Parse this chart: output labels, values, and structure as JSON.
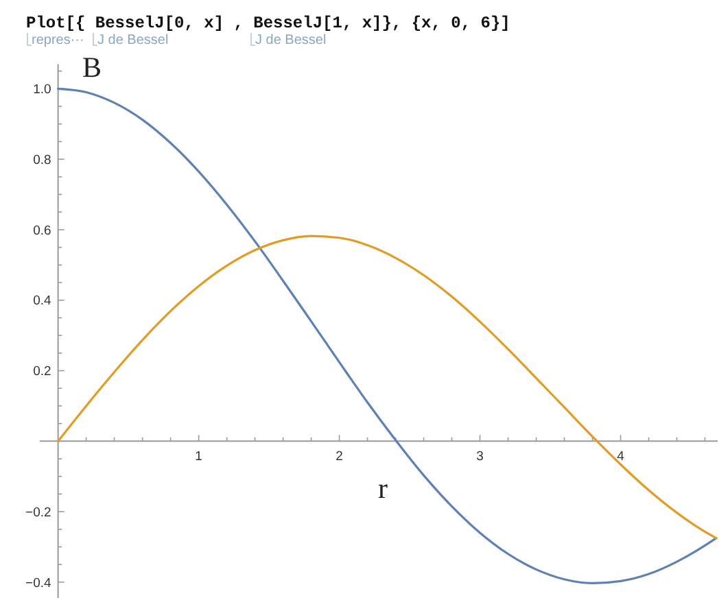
{
  "chart_data": {
    "type": "line",
    "title": "Plot[{ BesselJ[0, x] , BesselJ[1, x]}, {x, 0, 6}]",
    "annotations": [
      "repres···",
      "J de Bessel",
      "J de Bessel"
    ],
    "xlabel": "r",
    "ylabel": "B",
    "x": [
      0,
      0.2,
      0.4,
      0.6,
      0.8,
      1.0,
      1.2,
      1.4,
      1.6,
      1.8,
      2.0,
      2.2,
      2.4,
      2.6,
      2.8,
      3.0,
      3.2,
      3.4,
      3.6,
      3.8,
      4.0,
      4.2,
      4.4,
      4.6,
      4.68
    ],
    "series": [
      {
        "color": "#5e81b5",
        "values": [
          1.0,
          0.99,
          0.96,
          0.912,
          0.846,
          0.765,
          0.671,
          0.567,
          0.455,
          0.34,
          0.224,
          0.11,
          0.003,
          -0.097,
          -0.185,
          -0.26,
          -0.32,
          -0.364,
          -0.392,
          -0.403,
          -0.397,
          -0.377,
          -0.342,
          -0.296,
          -0.275
        ]
      },
      {
        "color": "#e19c24",
        "values": [
          0,
          0.1,
          0.196,
          0.287,
          0.369,
          0.44,
          0.498,
          0.542,
          0.57,
          0.582,
          0.577,
          0.556,
          0.52,
          0.471,
          0.41,
          0.339,
          0.261,
          0.179,
          0.096,
          0.013,
          -0.066,
          -0.139,
          -0.203,
          -0.257,
          -0.275
        ]
      }
    ],
    "xlim": [
      -0.13,
      4.69
    ],
    "ylim": [
      -0.445,
      1.07
    ],
    "xticks": [
      {
        "value": 0.2,
        "label": null
      },
      {
        "value": 0.4,
        "label": null
      },
      {
        "value": 0.6,
        "label": null
      },
      {
        "value": 0.8,
        "label": null
      },
      1,
      {
        "value": 1.2,
        "label": null
      },
      {
        "value": 1.4,
        "label": null
      },
      {
        "value": 1.6,
        "label": null
      },
      {
        "value": 1.8,
        "label": null
      },
      2,
      {
        "value": 2.2,
        "label": null
      },
      {
        "value": 2.4,
        "label": null
      },
      {
        "value": 2.6,
        "label": null
      },
      {
        "value": 2.8,
        "label": null
      },
      3,
      {
        "value": 3.2,
        "label": null
      },
      {
        "value": 3.4,
        "label": null
      },
      {
        "value": 3.6,
        "label": null
      },
      {
        "value": 3.8,
        "label": null
      },
      4,
      {
        "value": 4.2,
        "label": null
      },
      {
        "value": 4.4,
        "label": null
      },
      {
        "value": 4.6,
        "label": null
      }
    ],
    "yticks": [
      {
        "value": -0.4,
        "label": "−0.4"
      },
      {
        "value": -0.35,
        "label": null
      },
      {
        "value": -0.3,
        "label": null
      },
      {
        "value": -0.25,
        "label": null
      },
      {
        "value": -0.2,
        "label": "−0.2"
      },
      {
        "value": -0.15,
        "label": null
      },
      {
        "value": -0.1,
        "label": null
      },
      {
        "value": -0.05,
        "label": null
      },
      {
        "value": 0.05,
        "label": null
      },
      {
        "value": 0.1,
        "label": null
      },
      {
        "value": 0.15,
        "label": null
      },
      0.2,
      {
        "value": 0.25,
        "label": null
      },
      {
        "value": 0.3,
        "label": null
      },
      {
        "value": 0.35,
        "label": null
      },
      0.4,
      {
        "value": 0.45,
        "label": null
      },
      {
        "value": 0.5,
        "label": null
      },
      {
        "value": 0.55,
        "label": null
      },
      0.6,
      {
        "value": 0.65,
        "label": null
      },
      {
        "value": 0.7,
        "label": null
      },
      {
        "value": 0.75,
        "label": null
      },
      0.8,
      {
        "value": 0.85,
        "label": null
      },
      {
        "value": 0.9,
        "label": null
      },
      {
        "value": 0.95,
        "label": null
      },
      {
        "value": 1.0,
        "label": "1.0"
      },
      {
        "value": 1.05,
        "label": null
      }
    ]
  }
}
